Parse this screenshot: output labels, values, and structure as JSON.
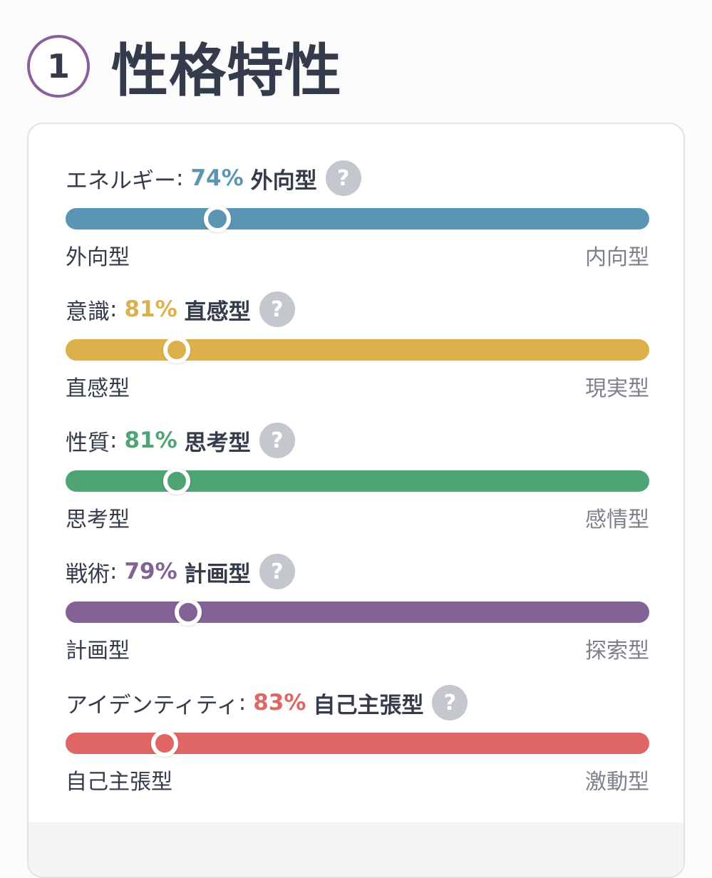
{
  "header": {
    "step_number": "1",
    "title": "性格特性"
  },
  "traits": [
    {
      "label": "エネルギー",
      "percent_text": "74%",
      "type": "外向型",
      "left_label": "外向型",
      "right_label": "内向型",
      "color": "#5a96b4",
      "knob_position_percent": 26
    },
    {
      "label": "意識",
      "percent_text": "81%",
      "type": "直感型",
      "left_label": "直感型",
      "right_label": "現実型",
      "color": "#ddb04c",
      "knob_position_percent": 19
    },
    {
      "label": "性質",
      "percent_text": "81%",
      "type": "思考型",
      "left_label": "思考型",
      "right_label": "感情型",
      "color": "#4fa474",
      "knob_position_percent": 19
    },
    {
      "label": "戦術",
      "percent_text": "79%",
      "type": "計画型",
      "left_label": "計画型",
      "right_label": "探索型",
      "color": "#836295",
      "knob_position_percent": 21
    },
    {
      "label": "アイデンティティ",
      "percent_text": "83%",
      "type": "自己主張型",
      "left_label": "自己主張型",
      "right_label": "激動型",
      "color": "#e06666",
      "knob_position_percent": 17
    }
  ],
  "help_icon_glyph": "?",
  "colon": ":"
}
